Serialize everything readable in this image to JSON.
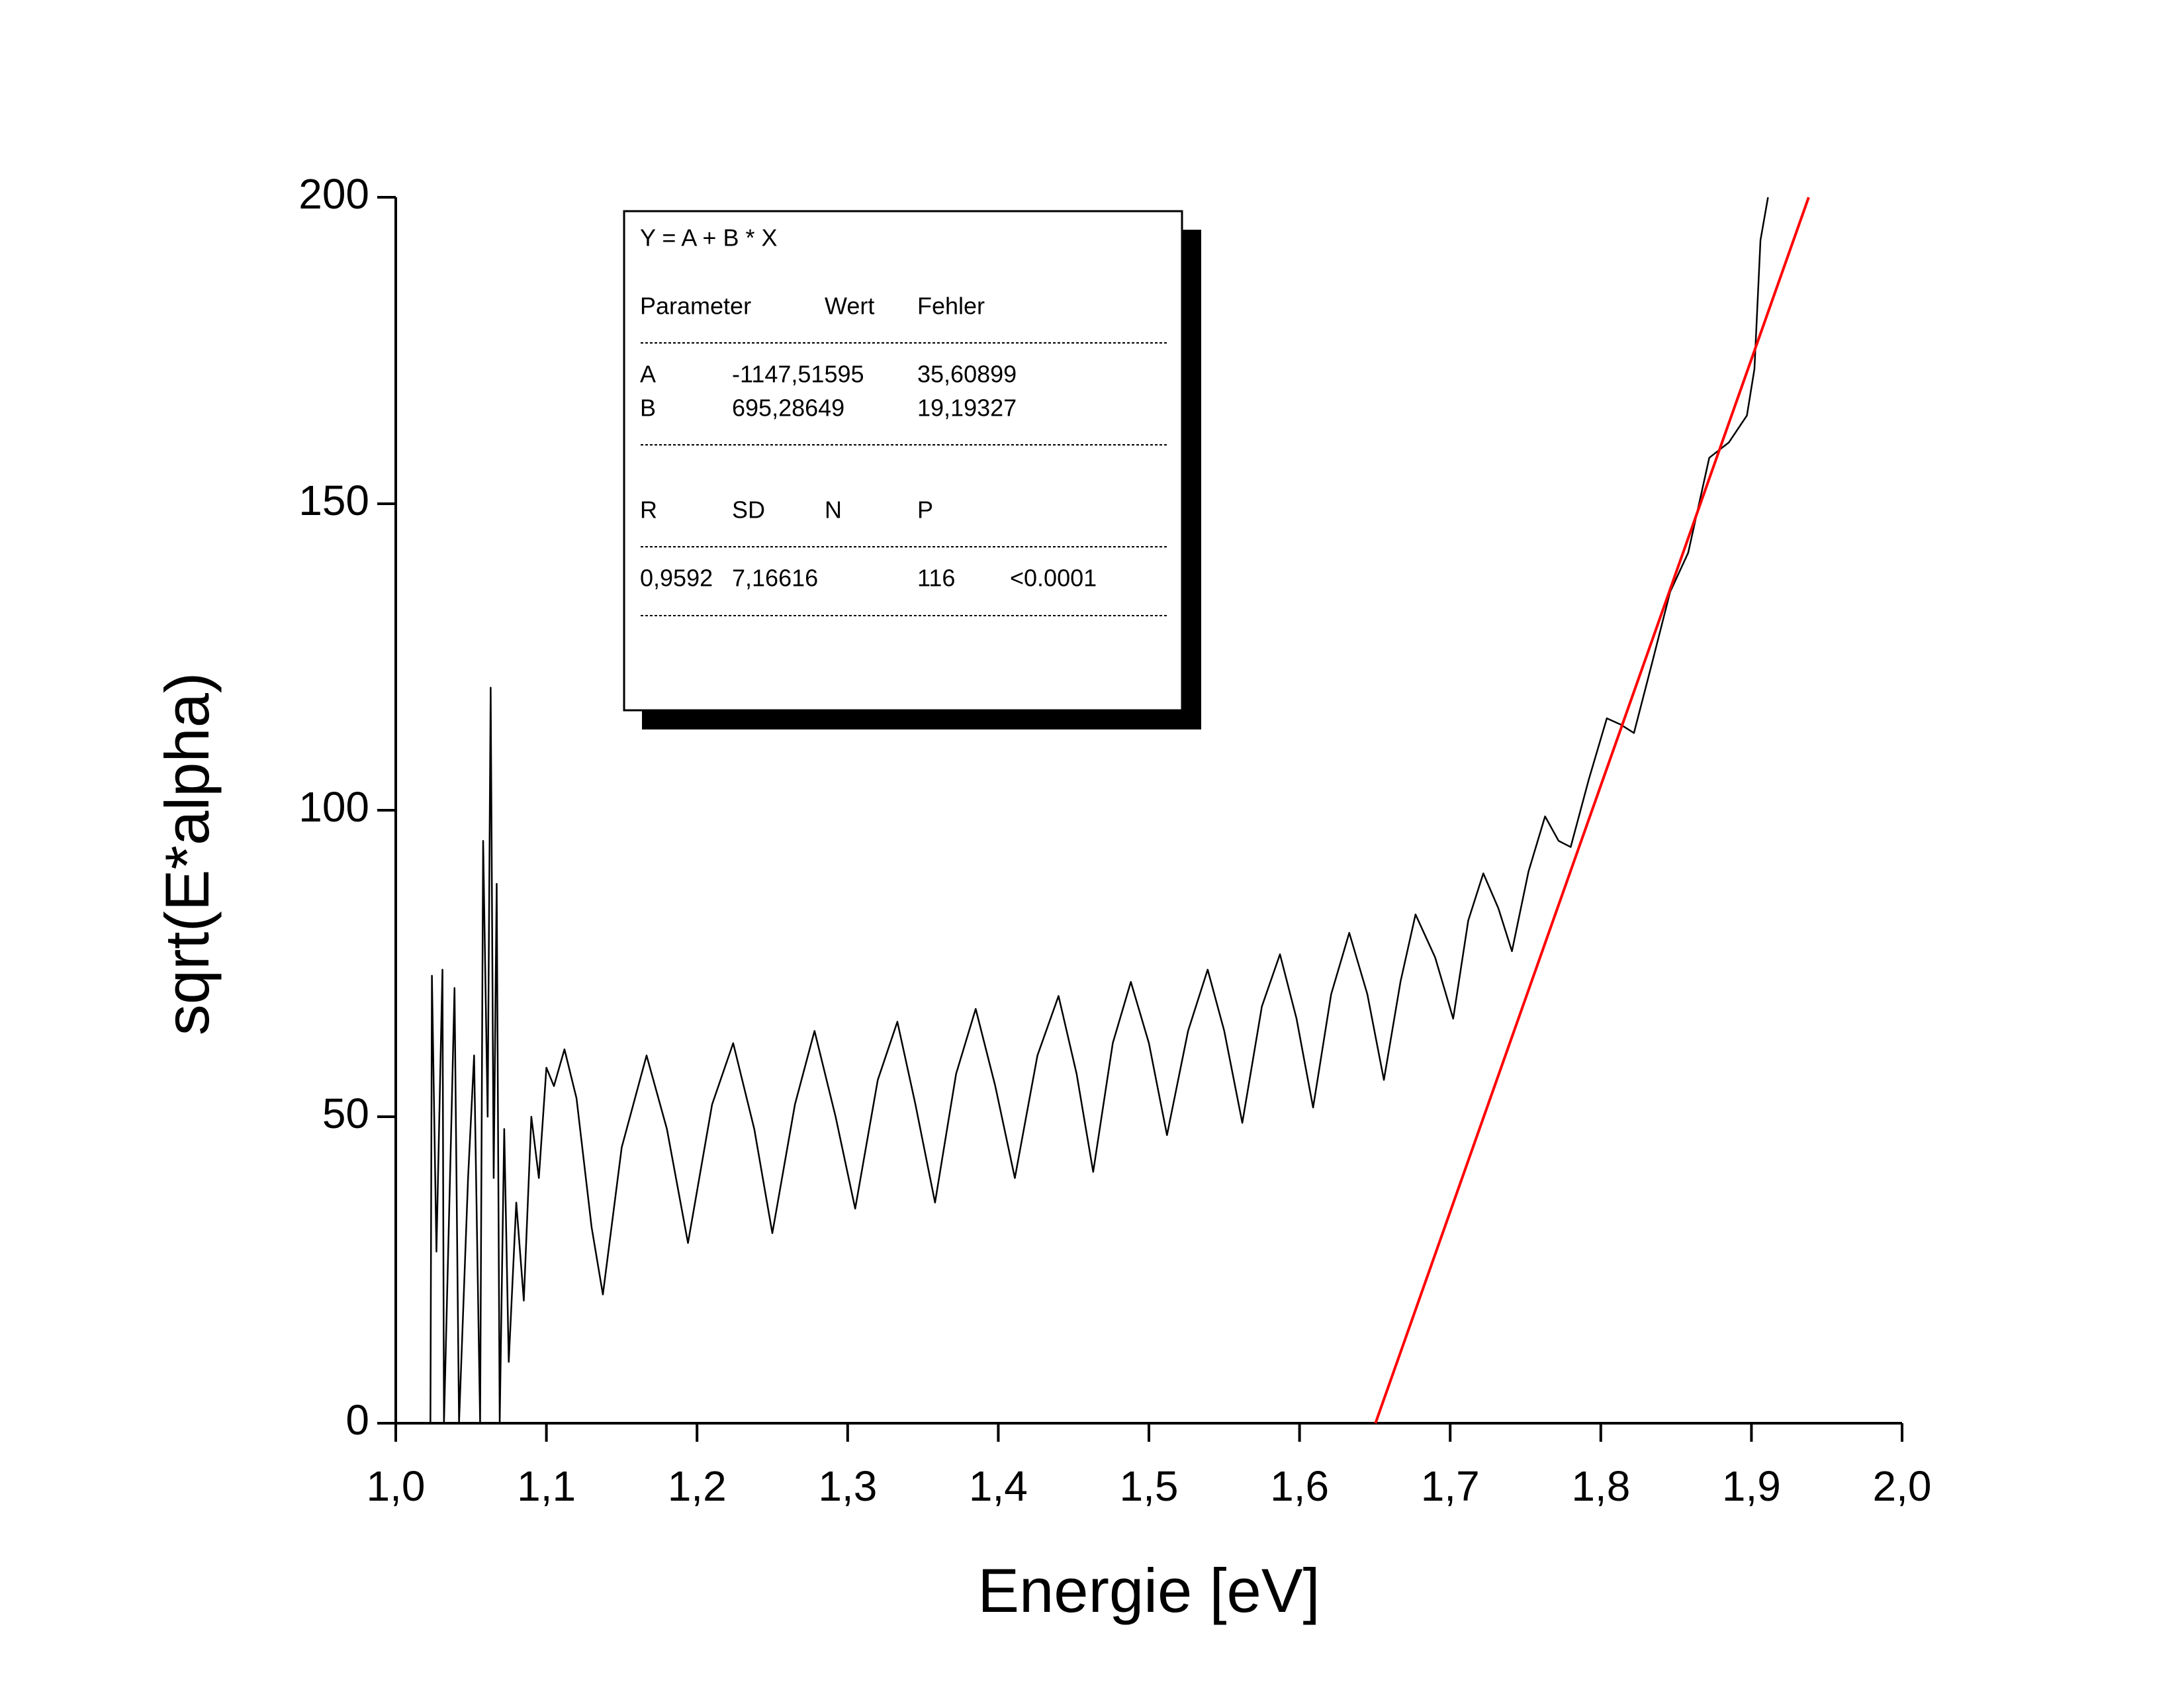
{
  "chart_data": {
    "type": "line",
    "xlabel": "Energie [eV]",
    "ylabel": "sqrt(E*alpha)",
    "xlim": [
      1.0,
      2.0
    ],
    "xticks": [
      {
        "value": 1.0,
        "label": "1,0"
      },
      {
        "value": 1.1,
        "label": "1,1"
      },
      {
        "value": 1.2,
        "label": "1,2"
      },
      {
        "value": 1.3,
        "label": "1,3"
      },
      {
        "value": 1.4,
        "label": "1,4"
      },
      {
        "value": 1.5,
        "label": "1,5"
      },
      {
        "value": 1.6,
        "label": "1,6"
      },
      {
        "value": 1.7,
        "label": "1,7"
      },
      {
        "value": 1.8,
        "label": "1,8"
      },
      {
        "value": 1.9,
        "label": "1,9"
      },
      {
        "value": 2.0,
        "label": "2,0"
      }
    ],
    "ylim": [
      0,
      200
    ],
    "yticks": [
      0,
      50,
      100,
      150,
      200
    ],
    "grid": false,
    "series": [
      {
        "color": "#000000",
        "x": [
          1.023,
          1.024,
          1.027,
          1.031,
          1.032,
          1.037,
          1.039,
          1.042,
          1.048,
          1.052,
          1.056,
          1.058,
          1.061,
          1.063,
          1.065,
          1.067,
          1.069,
          1.072,
          1.075,
          1.08,
          1.085,
          1.09,
          1.095,
          1.1,
          1.105,
          1.112,
          1.12,
          1.13,
          1.1375,
          1.15,
          1.1665,
          1.18,
          1.194,
          1.21,
          1.224,
          1.238,
          1.25,
          1.265,
          1.278,
          1.292,
          1.305,
          1.32,
          1.333,
          1.345,
          1.358,
          1.372,
          1.385,
          1.398,
          1.411,
          1.426,
          1.44,
          1.452,
          1.463,
          1.476,
          1.488,
          1.5,
          1.512,
          1.526,
          1.539,
          1.55,
          1.562,
          1.575,
          1.587,
          1.598,
          1.609,
          1.621,
          1.633,
          1.645,
          1.656,
          1.667,
          1.677,
          1.69,
          1.702,
          1.712,
          1.722,
          1.732,
          1.741,
          1.752,
          1.763,
          1.772,
          1.78,
          1.792,
          1.804,
          1.813,
          1.822,
          1.834,
          1.846,
          1.858,
          1.872,
          1.885,
          1.897,
          1.902,
          1.906,
          1.911
        ],
        "values": [
          0,
          73,
          28,
          74,
          0,
          50,
          71,
          0,
          40,
          60,
          0,
          95,
          50,
          120,
          40,
          88,
          0,
          48,
          10,
          36,
          20,
          50,
          40,
          58,
          55,
          61,
          53,
          32,
          21,
          45,
          60,
          48,
          29.4,
          52,
          62,
          48,
          31,
          52,
          64,
          50,
          35,
          56,
          65.5,
          52,
          36,
          57,
          67.6,
          55,
          40,
          60,
          69.7,
          57,
          41,
          62,
          72,
          62,
          47,
          64,
          74,
          64,
          49,
          68,
          76.5,
          66,
          51.5,
          70,
          80,
          70,
          56,
          72,
          83,
          76,
          66,
          82,
          89.7,
          84,
          77,
          90,
          99,
          95,
          94,
          105,
          115,
          114,
          112.6,
          124,
          135.6,
          142,
          157.5,
          160,
          164.4,
          172,
          193,
          200
        ]
      },
      {
        "color": "#ff0000",
        "x": [
          1.6504,
          1.938
        ],
        "values": [
          0,
          200
        ]
      }
    ],
    "fit_box": {
      "equation": "Y = A + B * X",
      "header": [
        "Parameter",
        "Wert",
        "Fehler"
      ],
      "rows": [
        [
          "A",
          "-1147,51595",
          "35,60899"
        ],
        [
          "B",
          "695,28649",
          "19,19327"
        ]
      ],
      "stats_header": [
        "R",
        "SD",
        "N",
        "P"
      ],
      "stats_row": [
        "0,9592",
        "7,16616",
        "116",
        "<0.0001"
      ]
    }
  }
}
